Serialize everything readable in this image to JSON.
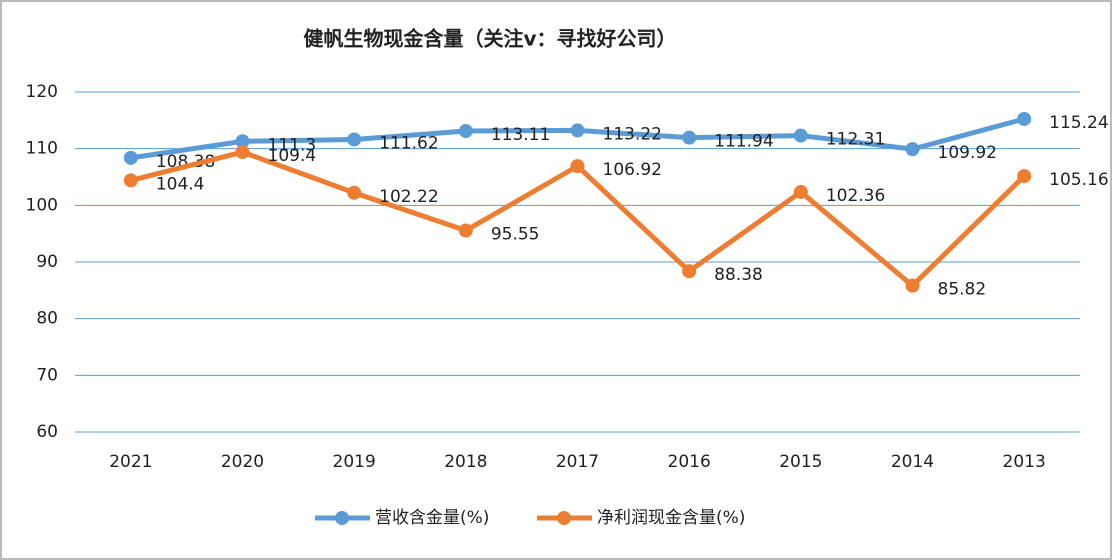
{
  "chart_data": {
    "type": "line",
    "title": "健帆生物现金含量（关注v：寻找好公司）",
    "categories": [
      "2021",
      "2020",
      "2019",
      "2018",
      "2017",
      "2016",
      "2015",
      "2014",
      "2013"
    ],
    "series": [
      {
        "name": "营收含金量(%)",
        "color": "#5b9bd5",
        "values": [
          108.38,
          111.3,
          111.62,
          113.11,
          113.22,
          111.94,
          112.31,
          109.92,
          115.24
        ]
      },
      {
        "name": "净利润现金含量(%)",
        "color": "#ed7d31",
        "values": [
          104.4,
          109.4,
          102.22,
          95.55,
          106.92,
          88.38,
          102.36,
          85.82,
          105.16
        ]
      }
    ],
    "ylim": [
      60,
      120
    ],
    "yticks": [
      60,
      70,
      80,
      90,
      100,
      110,
      120
    ],
    "grid": true,
    "legend": "bottom"
  }
}
